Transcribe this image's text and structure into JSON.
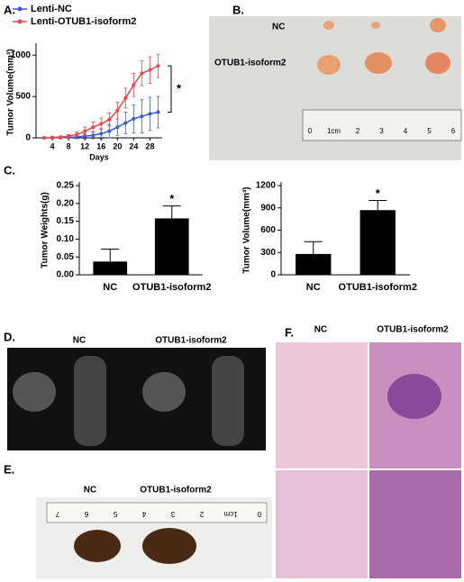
{
  "panels": {
    "a": "A.",
    "b": "B.",
    "c": "C.",
    "d": "D.",
    "e": "E.",
    "f": "F."
  },
  "photo_b": {
    "labels": [
      "NC",
      "OTUB1-isoform2"
    ],
    "ruler": [
      "0",
      "1cm",
      "2",
      "3",
      "4",
      "5",
      "6"
    ]
  },
  "photo_d": {
    "labels": [
      "NC",
      "OTUB1-isoform2"
    ]
  },
  "photo_e": {
    "labels": [
      "NC",
      "OTUB1-isoform2"
    ],
    "ruler": [
      "0",
      "1cm",
      "2",
      "3",
      "4",
      "5",
      "6",
      "7"
    ]
  },
  "photo_f": {
    "labels": [
      "NC",
      "OTUB1-isoform2"
    ]
  },
  "chart_data": [
    {
      "type": "line",
      "xlabel": "Days",
      "ylabel": "Tumor Volume(mm³)",
      "annotation": "*",
      "x": [
        2,
        4,
        6,
        8,
        10,
        12,
        14,
        16,
        18,
        20,
        22,
        24,
        26,
        28,
        30
      ],
      "series": [
        {
          "name": "Lenti-NC",
          "color": "#3a5fcd",
          "values": [
            0,
            0,
            2,
            5,
            10,
            20,
            30,
            50,
            80,
            130,
            180,
            230,
            260,
            290,
            310
          ],
          "errors": [
            0,
            0,
            5,
            10,
            20,
            30,
            40,
            60,
            80,
            100,
            130,
            170,
            200,
            200,
            190
          ]
        },
        {
          "name": "Lenti-OTUB1-isoform2",
          "color": "#e8474c",
          "values": [
            0,
            5,
            10,
            20,
            40,
            80,
            130,
            170,
            220,
            330,
            480,
            640,
            780,
            820,
            870
          ],
          "errors": [
            0,
            5,
            10,
            20,
            30,
            50,
            60,
            70,
            80,
            100,
            120,
            140,
            150,
            160,
            140
          ]
        }
      ],
      "xlim": [
        0,
        31
      ],
      "ylim": [
        0,
        1100
      ],
      "xticks": [
        4,
        8,
        12,
        16,
        20,
        24,
        28
      ],
      "yticks": [
        0,
        500,
        1000
      ]
    },
    {
      "type": "bar",
      "ylabel": "Tumor Weights(g)",
      "annotation": "*",
      "categories": [
        "NC",
        "OTUB1-isoform2"
      ],
      "values": [
        0.037,
        0.158
      ],
      "errors": [
        0.035,
        0.035
      ],
      "color": "#000000",
      "ylim": [
        0,
        0.25
      ],
      "yticks": [
        {
          "value": 0,
          "label": "0.00"
        },
        0.05,
        {
          "value": 0.1,
          "label": "0.10"
        },
        0.15,
        {
          "value": 0.2,
          "label": "0.20"
        },
        0.25
      ]
    },
    {
      "type": "bar",
      "ylabel": "Tumor Volume(mm³)",
      "annotation": "*",
      "categories": [
        "NC",
        "OTUB1-isoform2"
      ],
      "values": [
        280,
        870
      ],
      "errors": [
        165,
        130
      ],
      "color": "#000000",
      "ylim": [
        0,
        1200
      ],
      "yticks": [
        0,
        300,
        600,
        900,
        1200
      ]
    }
  ]
}
